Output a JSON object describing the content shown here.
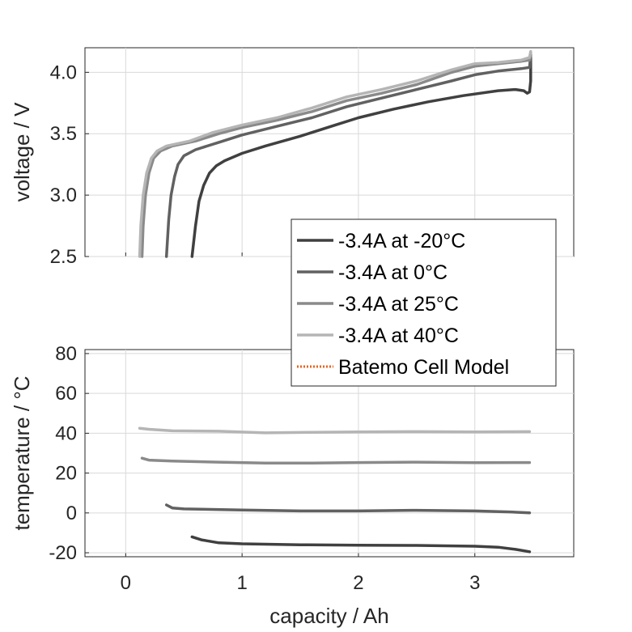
{
  "chart_data": [
    {
      "type": "line",
      "xlabel": "",
      "ylabel": "voltage / V",
      "xlim": [
        -0.35,
        3.85
      ],
      "ylim": [
        2.5,
        4.2
      ],
      "xticks": [
        0,
        1,
        2,
        3
      ],
      "yticks": [
        2.5,
        3.0,
        3.5,
        4.0
      ],
      "ytick_labels": [
        "2.5",
        "3.0",
        "3.5",
        "4.0"
      ],
      "grid": true,
      "series": [
        {
          "name": "-3.4A at -20°C",
          "color": "#404040",
          "points": [
            [
              0.57,
              2.5
            ],
            [
              0.6,
              2.75
            ],
            [
              0.63,
              2.95
            ],
            [
              0.67,
              3.08
            ],
            [
              0.72,
              3.18
            ],
            [
              0.78,
              3.24
            ],
            [
              0.85,
              3.28
            ],
            [
              1.0,
              3.34
            ],
            [
              1.2,
              3.4
            ],
            [
              1.5,
              3.48
            ],
            [
              1.8,
              3.57
            ],
            [
              2.0,
              3.63
            ],
            [
              2.3,
              3.7
            ],
            [
              2.6,
              3.76
            ],
            [
              2.9,
              3.81
            ],
            [
              3.2,
              3.85
            ],
            [
              3.35,
              3.86
            ],
            [
              3.42,
              3.85
            ],
            [
              3.45,
              3.83
            ],
            [
              3.47,
              3.84
            ],
            [
              3.48,
              3.93
            ],
            [
              3.48,
              4.12
            ]
          ]
        },
        {
          "name": "-3.4A at 0°C",
          "color": "#616161",
          "points": [
            [
              0.35,
              2.5
            ],
            [
              0.37,
              2.8
            ],
            [
              0.39,
              3.0
            ],
            [
              0.42,
              3.15
            ],
            [
              0.45,
              3.25
            ],
            [
              0.5,
              3.32
            ],
            [
              0.6,
              3.37
            ],
            [
              0.8,
              3.43
            ],
            [
              1.0,
              3.49
            ],
            [
              1.3,
              3.56
            ],
            [
              1.6,
              3.63
            ],
            [
              1.9,
              3.72
            ],
            [
              2.2,
              3.79
            ],
            [
              2.5,
              3.86
            ],
            [
              2.8,
              3.93
            ],
            [
              3.0,
              3.98
            ],
            [
              3.2,
              4.01
            ],
            [
              3.4,
              4.03
            ],
            [
              3.47,
              4.04
            ],
            [
              3.48,
              4.14
            ]
          ]
        },
        {
          "name": "-3.4A at 25°C",
          "color": "#8a8a8a",
          "points": [
            [
              0.14,
              2.5
            ],
            [
              0.15,
              2.75
            ],
            [
              0.17,
              3.0
            ],
            [
              0.2,
              3.18
            ],
            [
              0.24,
              3.3
            ],
            [
              0.3,
              3.36
            ],
            [
              0.4,
              3.4
            ],
            [
              0.6,
              3.44
            ],
            [
              0.8,
              3.5
            ],
            [
              1.0,
              3.55
            ],
            [
              1.3,
              3.61
            ],
            [
              1.6,
              3.68
            ],
            [
              1.9,
              3.77
            ],
            [
              2.2,
              3.83
            ],
            [
              2.5,
              3.9
            ],
            [
              2.8,
              4.0
            ],
            [
              3.0,
              4.05
            ],
            [
              3.2,
              4.07
            ],
            [
              3.4,
              4.09
            ],
            [
              3.47,
              4.1
            ],
            [
              3.48,
              4.16
            ]
          ]
        },
        {
          "name": "-3.4A at 40°C",
          "color": "#b5b5b5",
          "points": [
            [
              0.12,
              2.5
            ],
            [
              0.13,
              2.75
            ],
            [
              0.15,
              3.0
            ],
            [
              0.18,
              3.18
            ],
            [
              0.22,
              3.3
            ],
            [
              0.27,
              3.36
            ],
            [
              0.35,
              3.4
            ],
            [
              0.55,
              3.44
            ],
            [
              0.75,
              3.51
            ],
            [
              1.0,
              3.57
            ],
            [
              1.3,
              3.63
            ],
            [
              1.6,
              3.71
            ],
            [
              1.9,
              3.8
            ],
            [
              2.2,
              3.86
            ],
            [
              2.5,
              3.93
            ],
            [
              2.8,
              4.02
            ],
            [
              3.0,
              4.07
            ],
            [
              3.2,
              4.08
            ],
            [
              3.4,
              4.1
            ],
            [
              3.47,
              4.12
            ],
            [
              3.48,
              4.17
            ]
          ]
        }
      ]
    },
    {
      "type": "line",
      "xlabel": "capacity / Ah",
      "ylabel": "temperature / °C",
      "xlim": [
        -0.35,
        3.85
      ],
      "ylim": [
        -22,
        82
      ],
      "xticks": [
        0,
        1,
        2,
        3
      ],
      "xtick_labels": [
        "0",
        "1",
        "2",
        "3"
      ],
      "yticks": [
        -20,
        0,
        20,
        40,
        60,
        80
      ],
      "ytick_labels": [
        "-20",
        "0",
        "20",
        "40",
        "60",
        "80"
      ],
      "grid": true,
      "series": [
        {
          "name": "-3.4A at -20°C",
          "color": "#404040",
          "points": [
            [
              0.57,
              -12
            ],
            [
              0.65,
              -13.5
            ],
            [
              0.8,
              -15
            ],
            [
              1.0,
              -15.5
            ],
            [
              1.5,
              -16
            ],
            [
              2.0,
              -16.2
            ],
            [
              2.5,
              -16.3
            ],
            [
              3.0,
              -16.7
            ],
            [
              3.2,
              -17.2
            ],
            [
              3.35,
              -18.3
            ],
            [
              3.47,
              -19.5
            ]
          ]
        },
        {
          "name": "-3.4A at 0°C",
          "color": "#616161",
          "points": [
            [
              0.35,
              4
            ],
            [
              0.4,
              2.5
            ],
            [
              0.5,
              2
            ],
            [
              1.0,
              1.5
            ],
            [
              1.5,
              1
            ],
            [
              2.0,
              1
            ],
            [
              2.5,
              1.3
            ],
            [
              3.0,
              1
            ],
            [
              3.3,
              0.5
            ],
            [
              3.47,
              0
            ]
          ]
        },
        {
          "name": "-3.4A at 25°C",
          "color": "#8a8a8a",
          "points": [
            [
              0.14,
              27.5
            ],
            [
              0.2,
              26.5
            ],
            [
              0.4,
              26
            ],
            [
              0.8,
              25.5
            ],
            [
              1.2,
              25
            ],
            [
              1.6,
              25
            ],
            [
              2.0,
              25.3
            ],
            [
              2.5,
              25.5
            ],
            [
              3.0,
              25.2
            ],
            [
              3.47,
              25.3
            ]
          ]
        },
        {
          "name": "-3.4A at 40°C",
          "color": "#b5b5b5",
          "points": [
            [
              0.12,
              42.5
            ],
            [
              0.2,
              42
            ],
            [
              0.4,
              41.2
            ],
            [
              0.8,
              41
            ],
            [
              1.2,
              40.2
            ],
            [
              1.6,
              40.5
            ],
            [
              2.0,
              40.7
            ],
            [
              2.5,
              40.8
            ],
            [
              3.0,
              40.7
            ],
            [
              3.47,
              40.8
            ]
          ]
        }
      ]
    }
  ],
  "legend": {
    "placement": "overlapping both panels, right",
    "entries": [
      {
        "label": "-3.4A at -20°C",
        "color": "#404040",
        "style": "solid"
      },
      {
        "label": "-3.4A at 0°C",
        "color": "#616161",
        "style": "solid"
      },
      {
        "label": "-3.4A at 25°C",
        "color": "#8a8a8a",
        "style": "solid"
      },
      {
        "label": "-3.4A at 40°C",
        "color": "#b5b5b5",
        "style": "solid"
      },
      {
        "label": "Batemo Cell Model",
        "color": "#e8631c",
        "style": "dotted"
      }
    ]
  }
}
